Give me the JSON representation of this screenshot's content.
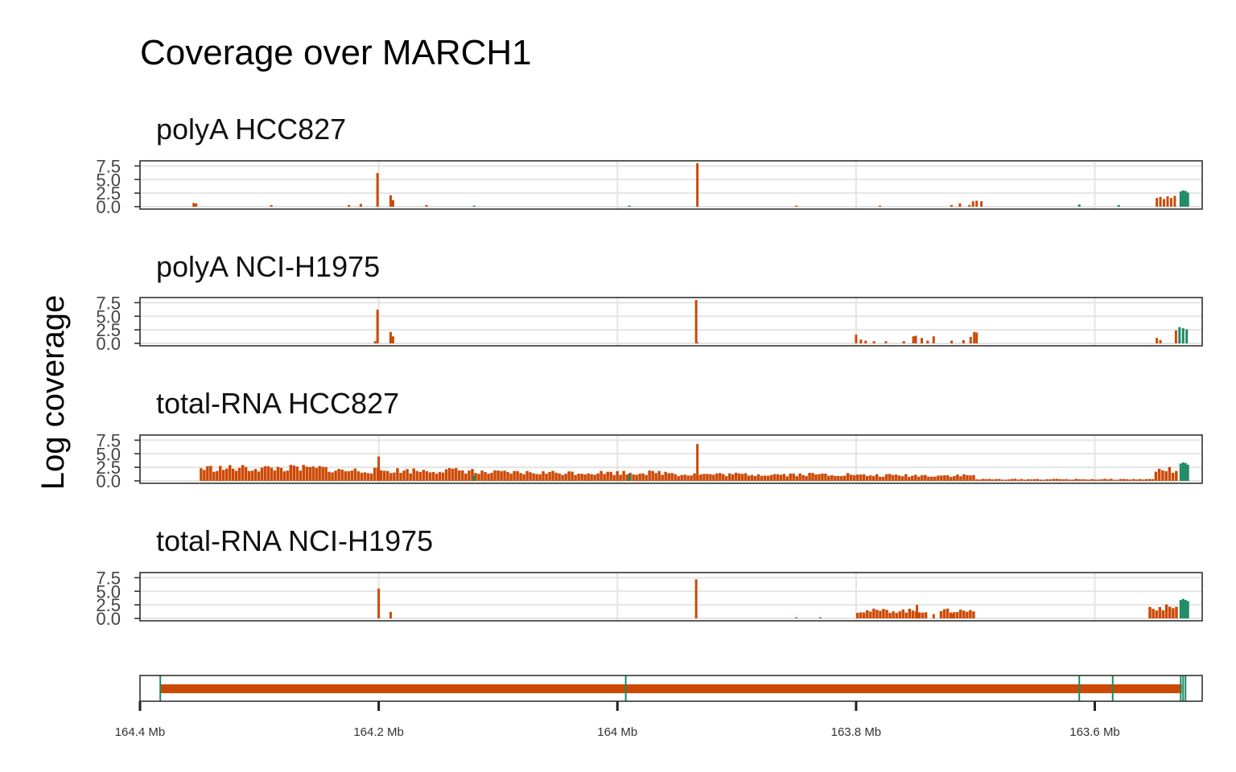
{
  "chart_data": {
    "type": "bar",
    "title": "Coverage over MARCH1",
    "ylabel": "Log coverage",
    "x_unit": "Mb",
    "x_reversed": true,
    "xlim": [
      164.4,
      163.51
    ],
    "ylim": [
      0,
      8
    ],
    "y_ticks": [
      0.0,
      2.5,
      5.0,
      7.5
    ],
    "y_tick_labels": [
      "0.0",
      "2.5",
      "5.0",
      "7.5"
    ],
    "x_ticks": [
      164.4,
      164.2,
      164.0,
      163.8,
      163.6
    ],
    "x_tick_labels": [
      "164.4 Mb",
      "164.2 Mb",
      "164 Mb",
      "163.8 Mb",
      "163.6 Mb"
    ],
    "grid": true,
    "colors": {
      "intron": "#cc4a06",
      "exon": "#1b8a62"
    },
    "panels": [
      {
        "name": "polyA HCC827",
        "bars": [
          [
            164.355,
            0.7,
            0
          ],
          [
            164.353,
            0.6,
            0
          ],
          [
            164.29,
            0.3,
            0
          ],
          [
            164.225,
            0.3,
            0
          ],
          [
            164.215,
            0.5,
            0
          ],
          [
            164.201,
            6.2,
            0
          ],
          [
            164.19,
            2.1,
            0
          ],
          [
            164.188,
            1.2,
            0
          ],
          [
            164.16,
            0.3,
            0
          ],
          [
            164.12,
            0.2,
            1
          ],
          [
            163.99,
            0.2,
            1
          ],
          [
            163.933,
            8.0,
            0
          ],
          [
            163.85,
            0.2,
            0
          ],
          [
            163.78,
            0.2,
            0
          ],
          [
            163.72,
            0.3,
            0
          ],
          [
            163.713,
            0.6,
            0
          ],
          [
            163.705,
            0.3,
            0
          ],
          [
            163.702,
            1.0,
            0
          ],
          [
            163.699,
            1.1,
            0
          ],
          [
            163.695,
            1.0,
            0
          ],
          [
            163.613,
            0.4,
            1
          ],
          [
            163.58,
            0.3,
            1
          ],
          [
            163.548,
            1.6,
            0
          ],
          [
            163.545,
            1.8,
            0
          ],
          [
            163.542,
            1.4,
            0
          ],
          [
            163.539,
            1.9,
            0
          ],
          [
            163.536,
            1.6,
            0
          ],
          [
            163.533,
            2.0,
            0
          ],
          [
            163.528,
            2.8,
            1
          ],
          [
            163.526,
            3.0,
            1
          ],
          [
            163.524,
            2.9,
            1
          ],
          [
            163.522,
            2.6,
            1
          ]
        ]
      },
      {
        "name": "polyA NCI-H1975",
        "bars": [
          [
            164.203,
            0.4,
            0
          ],
          [
            164.201,
            6.2,
            0
          ],
          [
            164.19,
            2.1,
            0
          ],
          [
            164.188,
            1.3,
            0
          ],
          [
            163.934,
            8.0,
            0
          ],
          [
            163.933,
            0.2,
            0
          ],
          [
            163.8,
            1.6,
            0
          ],
          [
            163.796,
            0.7,
            0
          ],
          [
            163.792,
            0.5,
            0
          ],
          [
            163.785,
            0.4,
            0
          ],
          [
            163.775,
            0.4,
            0
          ],
          [
            163.76,
            0.3,
            0
          ],
          [
            163.76,
            0.4,
            0
          ],
          [
            163.74,
            0.5,
            0
          ],
          [
            163.752,
            1.3,
            0
          ],
          [
            163.75,
            1.4,
            0
          ],
          [
            163.745,
            1.0,
            0
          ],
          [
            163.735,
            1.3,
            0
          ],
          [
            163.72,
            0.5,
            0
          ],
          [
            163.71,
            0.6,
            0
          ],
          [
            163.704,
            1.2,
            0
          ],
          [
            163.701,
            2.1,
            0
          ],
          [
            163.699,
            2.0,
            0
          ],
          [
            163.548,
            1.0,
            0
          ],
          [
            163.545,
            0.6,
            0
          ],
          [
            163.532,
            2.4,
            0
          ],
          [
            163.529,
            3.0,
            1
          ],
          [
            163.526,
            2.8,
            1
          ],
          [
            163.523,
            2.6,
            1
          ]
        ]
      },
      {
        "name": "total-RNA HCC827",
        "dense": [
          {
            "from": 164.35,
            "to": 164.24,
            "level": 2.3,
            "color": 0
          },
          {
            "from": 164.24,
            "to": 164.12,
            "level": 1.9,
            "color": 0
          },
          {
            "from": 164.12,
            "to": 163.95,
            "level": 1.5,
            "color": 0
          },
          {
            "from": 163.95,
            "to": 163.8,
            "level": 1.2,
            "color": 0
          },
          {
            "from": 163.8,
            "to": 163.7,
            "level": 1.0,
            "color": 0
          },
          {
            "from": 163.7,
            "to": 163.55,
            "level": 0.3,
            "color": 0
          },
          {
            "from": 163.55,
            "to": 163.53,
            "level": 2.0,
            "color": 0
          }
        ],
        "bars": [
          [
            164.2,
            4.5,
            0
          ],
          [
            163.933,
            6.8,
            0
          ],
          [
            164.12,
            1.0,
            1
          ],
          [
            163.99,
            1.3,
            1
          ],
          [
            163.528,
            3.2,
            1
          ],
          [
            163.526,
            3.4,
            1
          ],
          [
            163.524,
            3.3,
            1
          ],
          [
            163.522,
            3.0,
            1
          ]
        ]
      },
      {
        "name": "total-RNA NCI-H1975",
        "dense": [
          {
            "from": 163.8,
            "to": 163.74,
            "level": 1.4,
            "color": 0
          },
          {
            "from": 163.73,
            "to": 163.7,
            "level": 1.4,
            "color": 0
          },
          {
            "from": 163.555,
            "to": 163.53,
            "level": 2.0,
            "color": 0
          }
        ],
        "bars": [
          [
            164.2,
            5.5,
            0
          ],
          [
            164.19,
            1.2,
            0
          ],
          [
            163.934,
            7.2,
            0
          ],
          [
            163.85,
            0.2,
            0
          ],
          [
            163.83,
            0.2,
            0
          ],
          [
            163.735,
            0.8,
            0
          ],
          [
            163.72,
            0.8,
            0
          ],
          [
            163.749,
            2.5,
            0
          ],
          [
            163.528,
            3.4,
            1
          ],
          [
            163.526,
            3.6,
            1
          ],
          [
            163.524,
            3.4,
            1
          ],
          [
            163.522,
            3.2,
            1
          ]
        ]
      }
    ],
    "gene_model": {
      "intron_from": 164.383,
      "intron_to": 163.527,
      "exon_marks": [
        164.383,
        163.993,
        163.613,
        163.585,
        163.528,
        163.526,
        163.524
      ]
    }
  }
}
